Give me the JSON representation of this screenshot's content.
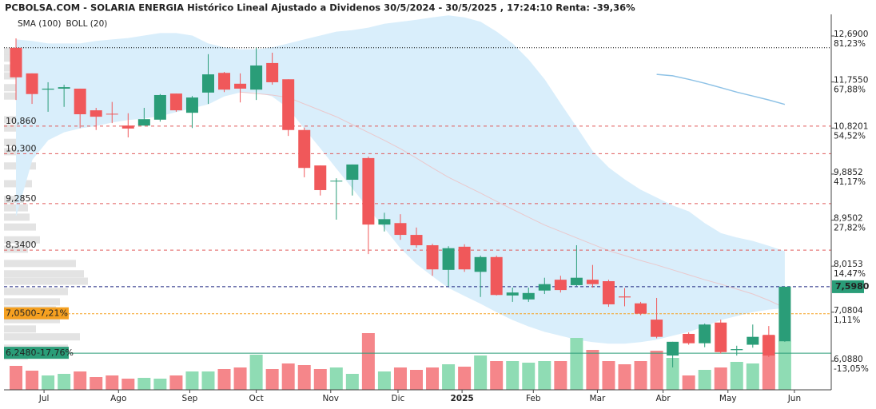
{
  "chart_data": {
    "type": "candlestick",
    "title": "PCBOLSA.COM - SOLARIA ENERGIA Histórico Lineal Ajustado a Dividenos 30/5/2024 - 30/5/2025 , 17:24:10 Renta: -39,36%",
    "x": [
      0,
      1,
      2,
      3,
      4,
      5,
      6,
      7,
      8,
      9,
      10,
      11,
      12,
      13,
      14,
      15,
      16,
      17,
      18,
      19,
      20,
      21,
      22,
      23,
      24,
      25,
      26,
      27,
      28,
      29,
      30,
      31,
      32,
      33,
      34,
      35,
      36,
      37,
      38,
      39,
      40,
      41,
      42,
      43,
      44,
      45,
      46,
      47,
      48
    ],
    "open": [
      12.45,
      11.93,
      11.6,
      11.62,
      11.62,
      11.18,
      11.11,
      10.87,
      10.87,
      10.99,
      11.52,
      11.13,
      11.54,
      11.94,
      11.72,
      11.6,
      12.14,
      11.81,
      10.78,
      10.06,
      9.74,
      9.77,
      10.21,
      8.86,
      8.89,
      8.65,
      8.44,
      7.94,
      8.41,
      7.9,
      8.2,
      7.42,
      7.34,
      7.52,
      7.74,
      7.63,
      7.74,
      7.71,
      7.4,
      7.26,
      6.93,
      6.2,
      6.64,
      6.45,
      6.87,
      6.31,
      6.42,
      6.62,
      6.49
    ],
    "high": [
      12.64,
      11.93,
      11.75,
      11.7,
      11.62,
      11.23,
      11.35,
      11.12,
      11.23,
      11.51,
      11.52,
      11.47,
      12.32,
      11.96,
      11.93,
      12.45,
      12.35,
      11.81,
      10.83,
      10.06,
      9.8,
      10.08,
      10.24,
      9.1,
      9.07,
      8.8,
      8.47,
      8.42,
      8.46,
      8.23,
      8.23,
      7.58,
      7.58,
      7.78,
      7.82,
      8.44,
      8.04,
      7.74,
      7.57,
      7.29,
      7.37,
      6.48,
      6.67,
      6.85,
      6.93,
      6.4,
      6.83,
      6.8,
      7.598
    ],
    "low": [
      11.39,
      11.31,
      11.15,
      11.25,
      10.82,
      10.78,
      10.92,
      10.63,
      10.87,
      10.95,
      11.15,
      10.82,
      11.31,
      11.55,
      11.34,
      11.39,
      11.7,
      10.66,
      9.82,
      9.45,
      8.96,
      9.45,
      8.26,
      8.72,
      8.55,
      8.39,
      7.82,
      7.61,
      7.9,
      7.39,
      7.42,
      7.29,
      7.29,
      7.45,
      7.48,
      7.61,
      7.58,
      7.19,
      7.2,
      7.02,
      6.55,
      5.96,
      6.42,
      6.37,
      6.24,
      6.2,
      6.36,
      6.17,
      6.48
    ],
    "close": [
      11.85,
      11.51,
      11.62,
      11.65,
      11.1,
      11.05,
      11.1,
      10.81,
      11.0,
      11.49,
      11.18,
      11.44,
      11.91,
      11.6,
      11.62,
      12.09,
      11.75,
      10.78,
      10.01,
      9.56,
      9.75,
      10.08,
      8.86,
      8.97,
      8.65,
      8.44,
      7.95,
      8.38,
      7.95,
      8.2,
      7.43,
      7.48,
      7.47,
      7.65,
      7.53,
      7.78,
      7.65,
      7.24,
      7.38,
      7.05,
      6.58,
      6.48,
      6.45,
      6.83,
      6.27,
      6.33,
      6.58,
      6.2,
      7.598
    ],
    "volume": [
      30,
      24,
      18,
      20,
      23,
      16,
      18,
      14,
      15,
      14,
      18,
      23,
      23,
      26,
      28,
      44,
      26,
      33,
      31,
      26,
      28,
      20,
      71,
      23,
      28,
      25,
      28,
      32,
      29,
      43,
      36,
      36,
      34,
      36,
      36,
      65,
      50,
      36,
      32,
      36,
      49,
      40,
      18,
      25,
      28,
      35,
      33,
      68,
      61
    ],
    "volume_lim": [
      0,
      470
    ],
    "up_color": "#2a9d78",
    "down_color": "#f0585a",
    "volume_up_color": "#8fdcb4",
    "volume_down_color": "#f5868a",
    "series": [
      {
        "name": "SMA (100)",
        "color": "#8ec2e6",
        "values": [
          null,
          null,
          null,
          null,
          null,
          null,
          null,
          null,
          null,
          null,
          null,
          null,
          null,
          null,
          null,
          null,
          null,
          null,
          null,
          null,
          null,
          null,
          null,
          null,
          null,
          null,
          null,
          null,
          null,
          null,
          null,
          null,
          null,
          null,
          null,
          null,
          null,
          null,
          null,
          null,
          11.91,
          11.88,
          11.81,
          11.73,
          11.64,
          11.55,
          11.47,
          11.39,
          11.3
        ]
      },
      {
        "name": "BOLL (20)",
        "color": "#c9c9c9",
        "fill": "#d9eefb",
        "middle_color": "#eac8cc",
        "upper": [
          12.61,
          12.58,
          12.53,
          12.53,
          12.53,
          12.58,
          12.61,
          12.64,
          12.69,
          12.74,
          12.74,
          12.69,
          12.53,
          12.45,
          12.41,
          12.41,
          12.45,
          12.53,
          12.61,
          12.69,
          12.77,
          12.8,
          12.85,
          12.93,
          12.97,
          13.01,
          13.06,
          13.1,
          13.06,
          12.97,
          12.77,
          12.53,
          12.2,
          11.8,
          11.31,
          10.83,
          10.34,
          10.01,
          9.77,
          9.56,
          9.4,
          9.24,
          9.12,
          8.88,
          8.68,
          8.59,
          8.52,
          8.42,
          8.31
        ],
        "middle": [
          null,
          null,
          null,
          null,
          null,
          null,
          null,
          null,
          null,
          null,
          null,
          null,
          null,
          null,
          11.55,
          11.52,
          11.49,
          11.44,
          11.31,
          11.18,
          11.05,
          10.89,
          10.73,
          10.57,
          10.4,
          10.21,
          10.01,
          9.82,
          9.66,
          9.5,
          9.33,
          9.17,
          9.01,
          8.85,
          8.72,
          8.59,
          8.46,
          8.33,
          8.23,
          8.13,
          8.04,
          7.94,
          7.84,
          7.74,
          7.65,
          7.55,
          7.45,
          7.32,
          7.17
        ],
        "lower": [
          9.04,
          10.18,
          10.58,
          10.74,
          10.82,
          10.87,
          10.94,
          10.99,
          11.02,
          11.07,
          11.15,
          11.23,
          11.31,
          11.47,
          11.55,
          11.55,
          11.47,
          11.23,
          10.82,
          10.42,
          10.01,
          9.61,
          9.2,
          8.8,
          8.39,
          8.07,
          7.82,
          7.58,
          7.42,
          7.26,
          7.09,
          6.93,
          6.8,
          6.69,
          6.61,
          6.53,
          6.48,
          6.45,
          6.45,
          6.48,
          6.53,
          6.61,
          6.69,
          6.8,
          6.93,
          7.01,
          7.09,
          7.14,
          7.17
        ]
      }
    ],
    "volume_profile": {
      "color": "#e3e3e3",
      "lim": [
        0,
        1035
      ],
      "prices": [
        12.37,
        12.24,
        12.04,
        11.88,
        11.64,
        11.47,
        10.99,
        10.82,
        10.53,
        10.34,
        10.05,
        9.69,
        9.37,
        9.2,
        9.01,
        8.81,
        8.55,
        8.36,
        8.07,
        7.86,
        7.71,
        7.5,
        7.29,
        7.13,
        6.93,
        6.74,
        6.58,
        6.35,
        6.19
      ],
      "values": [
        18,
        14,
        18,
        20,
        16,
        22,
        20,
        30,
        28,
        35,
        40,
        35,
        25,
        30,
        32,
        40,
        45,
        30,
        90,
        100,
        105,
        80,
        70,
        65,
        70,
        40,
        95,
        80,
        30
      ]
    },
    "levels": [
      {
        "value": 12.45,
        "color": "#000000",
        "dash": "1,2"
      },
      {
        "value": 10.86,
        "label": "10,860",
        "color": "#e05a5a",
        "dash": "4,4"
      },
      {
        "value": 10.3,
        "label": "10,300",
        "color": "#e05a5a",
        "dash": "4,4"
      },
      {
        "value": 9.285,
        "label": "9,2850",
        "color": "#e05a5a",
        "dash": "4,4"
      },
      {
        "value": 8.34,
        "label": "8,3400",
        "color": "#e05a5a",
        "dash": "4,4"
      },
      {
        "value": 7.598,
        "label": "7,5980",
        "color": "#1a237e",
        "dash": "4,3",
        "box": "#2a9d78",
        "side": "right"
      },
      {
        "value": 7.05,
        "label": "7,0500",
        "change": "-7,21%",
        "color": "#f5a020",
        "dash": "3,2",
        "box": "#f5a020",
        "side": "left"
      },
      {
        "value": 6.248,
        "label": "6,2480",
        "change": "-17,76%",
        "color": "#2a9d78",
        "box": "#2a9d78",
        "side": "left"
      }
    ],
    "xlim": [
      -0.75,
      50.9
    ],
    "ylim": [
      5.504,
      13.128
    ],
    "xticks": [
      {
        "value": 1.75,
        "label": "Jul"
      },
      {
        "value": 6.4,
        "label": "Ago"
      },
      {
        "value": 10.85,
        "label": "Sep"
      },
      {
        "value": 15,
        "label": "Oct"
      },
      {
        "value": 19.65,
        "label": "Nov"
      },
      {
        "value": 23.85,
        "label": "Dic"
      },
      {
        "value": 27.85,
        "label": "2025"
      },
      {
        "value": 32.3,
        "label": "Feb"
      },
      {
        "value": 36.3,
        "label": "Mar"
      },
      {
        "value": 40.4,
        "label": "Abr"
      },
      {
        "value": 44.45,
        "label": "May"
      },
      {
        "value": 48.6,
        "label": "Jun"
      }
    ],
    "yticks": [
      {
        "value": 12.69,
        "label": "12,6900"
      },
      {
        "value": 11.755,
        "label": "11,7550"
      },
      {
        "value": 10.8201,
        "label": "10,8201"
      },
      {
        "value": 9.8852,
        "label": "9,8852"
      },
      {
        "value": 8.9502,
        "label": "8,9502"
      },
      {
        "value": 8.0153,
        "label": "8,0153"
      },
      {
        "value": 7.0804,
        "label": "7,0804"
      },
      {
        "value": 6.088,
        "label": "6,0880"
      }
    ],
    "ytick_changes": [
      "81,23%",
      "67,88%",
      "54,52%",
      "41,17%",
      "27,82%",
      "14,47%",
      "1,11%",
      "-13,05%"
    ]
  }
}
